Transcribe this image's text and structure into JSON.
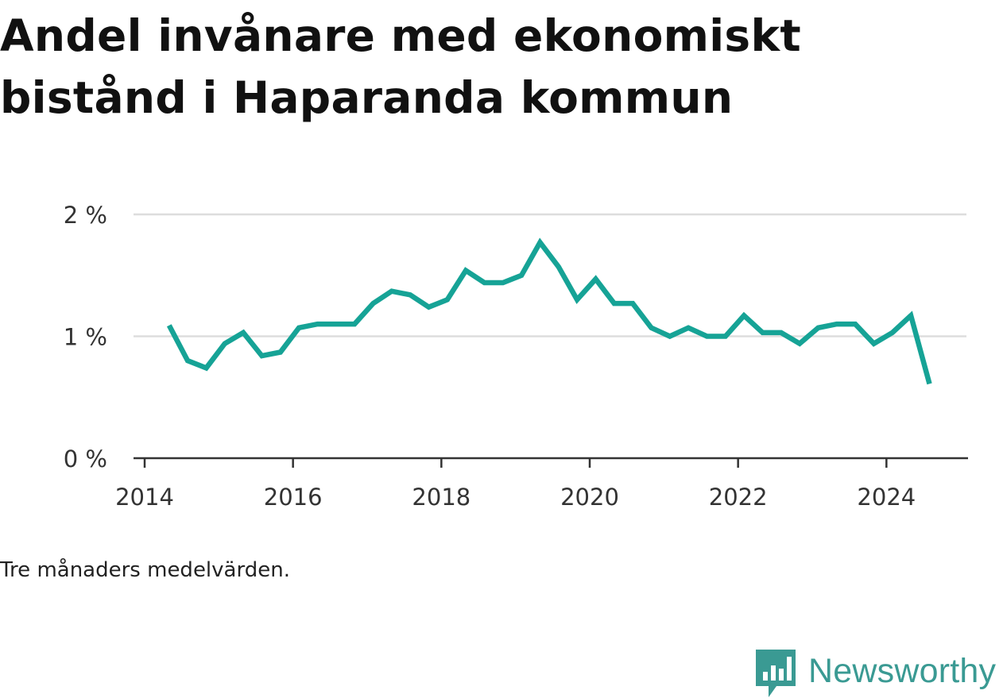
{
  "title": "Andel invånare med ekonomiskt bistånd i Haparanda kommun",
  "note": "Tre månaders medelvärden.",
  "brand": {
    "name": "Newsworthy",
    "icon": "bar-chart-speech-bubble-icon",
    "color": "#3a9a93"
  },
  "colors": {
    "line": "#16a396",
    "grid": "#dddddd",
    "axis": "#333333"
  },
  "chart_data": {
    "type": "line",
    "title": "Andel invånare med ekonomiskt bistånd i Haparanda kommun",
    "xlabel": "",
    "ylabel": "",
    "x_ticks": [
      "2014",
      "2016",
      "2018",
      "2020",
      "2022",
      "2024"
    ],
    "y_ticks": [
      "0 %",
      "1 %",
      "2 %"
    ],
    "xlim": [
      2013.85,
      2025.1
    ],
    "ylim": [
      0,
      2
    ],
    "grid": true,
    "legend": "none",
    "series": [
      {
        "x": [
          2014.33,
          2014.58,
          2014.83,
          2015.08,
          2015.33,
          2015.58,
          2015.83,
          2016.08,
          2016.33,
          2016.58,
          2016.83,
          2017.08,
          2017.33,
          2017.58,
          2017.83,
          2018.08,
          2018.33,
          2018.58,
          2018.83,
          2019.08,
          2019.33,
          2019.58,
          2019.83,
          2020.08,
          2020.33,
          2020.58,
          2020.83,
          2021.08,
          2021.33,
          2021.58,
          2021.83,
          2022.08,
          2022.33,
          2022.58,
          2022.83,
          2023.08,
          2023.33,
          2023.58,
          2023.83,
          2024.08,
          2024.33,
          2024.58
        ],
        "values": [
          1.09,
          0.8,
          0.74,
          0.94,
          1.03,
          0.84,
          0.87,
          1.07,
          1.1,
          1.1,
          1.1,
          1.27,
          1.37,
          1.34,
          1.24,
          1.3,
          1.54,
          1.44,
          1.44,
          1.5,
          1.77,
          1.57,
          1.3,
          1.47,
          1.27,
          1.27,
          1.07,
          1.0,
          1.07,
          1.0,
          1.0,
          1.17,
          1.03,
          1.03,
          0.94,
          1.07,
          1.1,
          1.1,
          0.94,
          1.03,
          1.17,
          0.61
        ]
      }
    ]
  }
}
